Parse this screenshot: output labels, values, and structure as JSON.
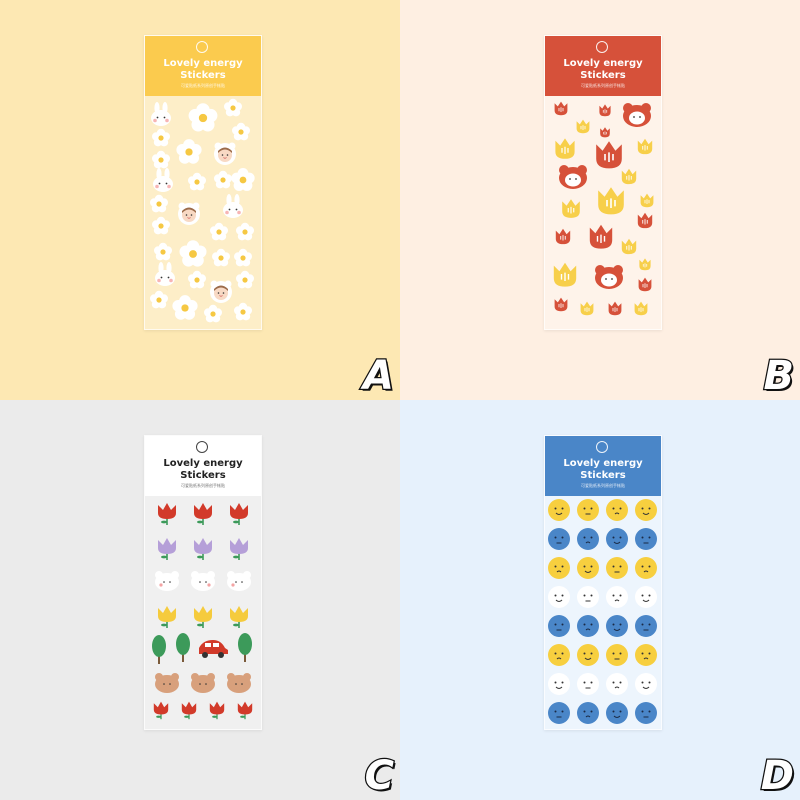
{
  "pack_title_line1": "Lovely energy",
  "pack_title_line2": "Stickers",
  "pack_subtitle": "可爱贴纸系列原创手帐贴",
  "panels": [
    {
      "label": "A",
      "background": "#fde8b3",
      "header": "#fbcb4e",
      "dark_text": false
    },
    {
      "label": "B",
      "background": "#feefe2",
      "header": "#d6513a",
      "dark_text": false
    },
    {
      "label": "C",
      "background": "#ebebeb",
      "header": "#ffffff",
      "dark_text": true
    },
    {
      "label": "D",
      "background": "#e6f1fc",
      "header": "#4a86c8",
      "dark_text": false
    }
  ]
}
